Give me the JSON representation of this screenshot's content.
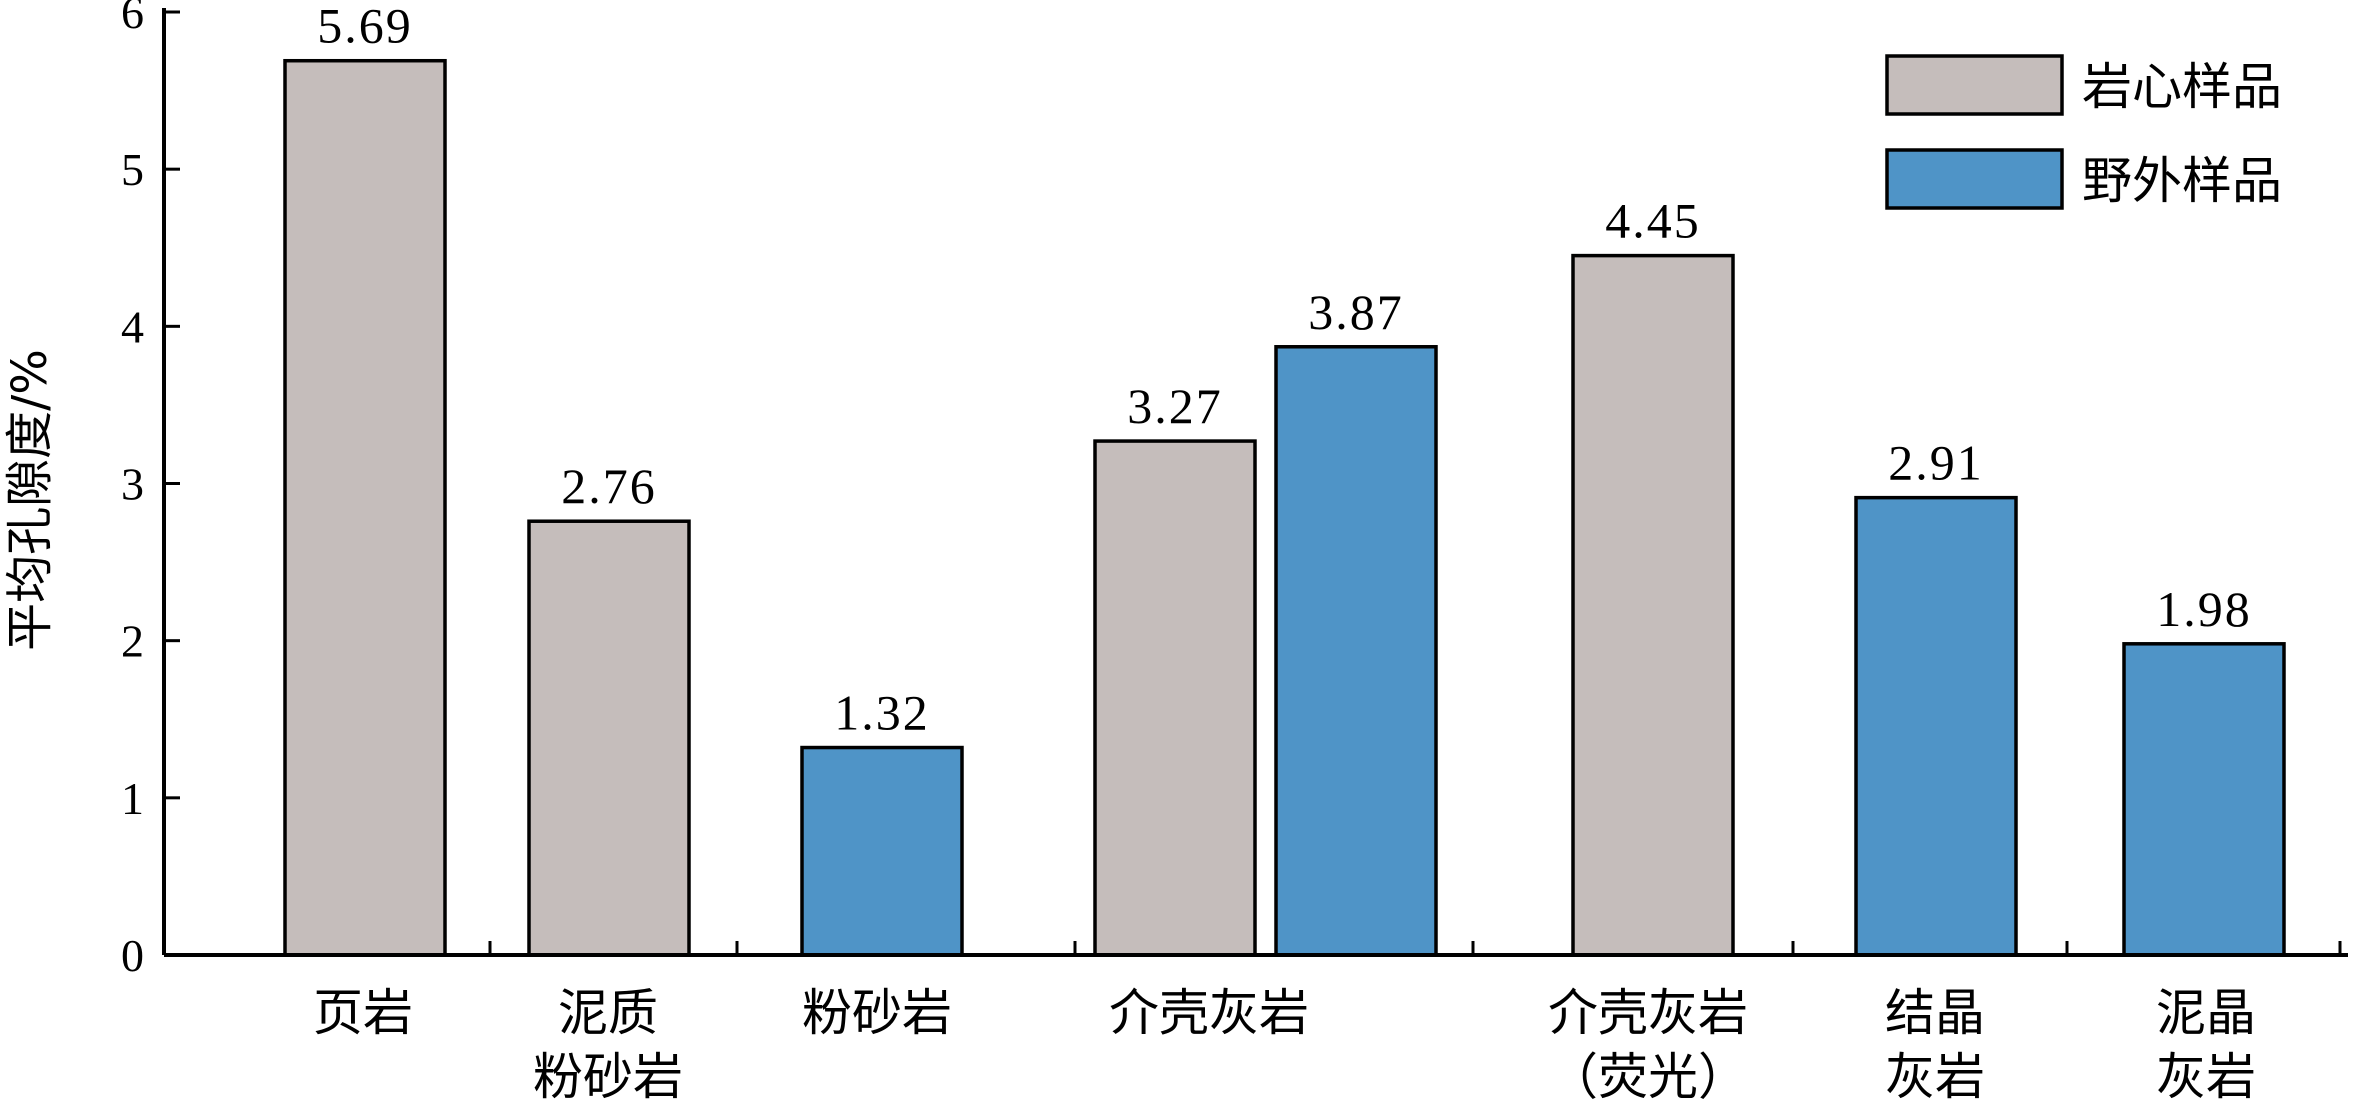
{
  "chart_data": {
    "type": "bar",
    "ylabel": "平均孔隙度/%",
    "ylim": [
      0,
      6
    ],
    "yticks": [
      "0",
      "1",
      "2",
      "3",
      "4",
      "5",
      "6"
    ],
    "grid": false,
    "legend_position": "top-right",
    "series": [
      {
        "name": "岩心样品",
        "color": "#c5bdbb"
      },
      {
        "name": "野外样品",
        "color": "#4f94c7"
      }
    ],
    "groups": [
      {
        "label": [
          "页岩"
        ],
        "bars": [
          {
            "series": 0,
            "value": 5.69,
            "value_label": "5.69"
          }
        ]
      },
      {
        "label": [
          "泥质",
          "粉砂岩"
        ],
        "bars": [
          {
            "series": 0,
            "value": 2.76,
            "value_label": "2.76"
          }
        ]
      },
      {
        "label": [
          "粉砂岩"
        ],
        "bars": [
          {
            "series": 1,
            "value": 1.32,
            "value_label": "1.32"
          }
        ]
      },
      {
        "label": [
          "介壳灰岩"
        ],
        "bars": [
          {
            "series": 0,
            "value": 3.27,
            "value_label": "3.27"
          },
          {
            "series": 1,
            "value": 3.87,
            "value_label": "3.87"
          }
        ]
      },
      {
        "label": [
          "介壳灰岩",
          "（荧光）"
        ],
        "bars": [
          {
            "series": 0,
            "value": 4.45,
            "value_label": "4.45"
          }
        ]
      },
      {
        "label": [
          "结晶",
          "灰岩"
        ],
        "bars": [
          {
            "series": 1,
            "value": 2.91,
            "value_label": "2.91"
          }
        ]
      },
      {
        "label": [
          "泥晶",
          "灰岩"
        ],
        "bars": [
          {
            "series": 1,
            "value": 1.98,
            "value_label": "1.98"
          }
        ]
      }
    ]
  }
}
